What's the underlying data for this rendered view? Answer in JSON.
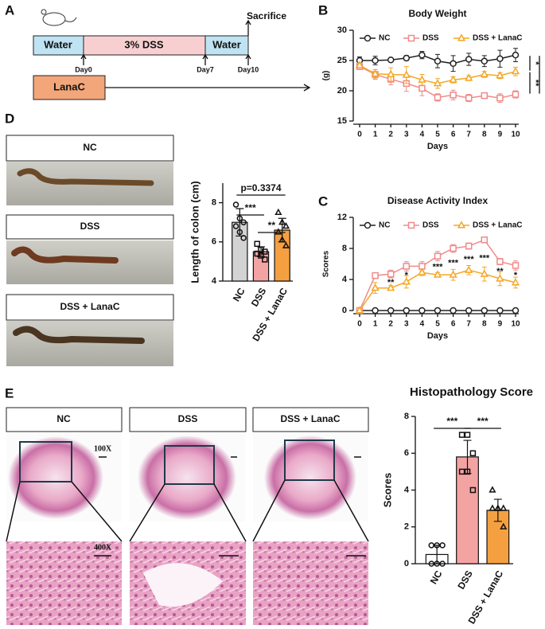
{
  "panel_labels": [
    "A",
    "B",
    "C",
    "D",
    "E"
  ],
  "timeline": {
    "phases": [
      "Water",
      "3% DSS",
      "Water"
    ],
    "end_label": "Sacrifice",
    "days": [
      "Day0",
      "Day7",
      "Day10"
    ],
    "treatment": "LanaC"
  },
  "colon_photos": {
    "labels": [
      "NC",
      "DSS",
      "DSS + LanaC"
    ]
  },
  "histology": {
    "labels": [
      "NC",
      "DSS",
      "DSS + LanaC"
    ],
    "magnifications": [
      "100X",
      "400X"
    ]
  },
  "chart_data": [
    {
      "type": "line",
      "title": "Body Weight",
      "x_label": "Days",
      "y_label": "(g)",
      "x": [
        0,
        1,
        2,
        3,
        4,
        5,
        6,
        7,
        8,
        9,
        10
      ],
      "xlim": [
        0,
        10
      ],
      "xticks": [
        0,
        1,
        2,
        3,
        4,
        5,
        6,
        7,
        8,
        9,
        10
      ],
      "ylim": [
        15,
        30
      ],
      "yticks": [
        15,
        20,
        25,
        30
      ],
      "series": [
        {
          "name": "NC",
          "color": "#222222",
          "marker": "circle",
          "values": [
            25,
            25,
            25.1,
            25.4,
            25.9,
            24.9,
            24.5,
            25.2,
            24.9,
            25.3,
            25.9
          ],
          "errors": [
            0.6,
            0.7,
            0.3,
            0.4,
            0.6,
            1.1,
            1.3,
            1,
            0.9,
            1.4,
            1.1
          ]
        },
        {
          "name": "DSS",
          "color": "#f08a8a",
          "marker": "square",
          "values": [
            24,
            22.7,
            21.9,
            21.2,
            20.4,
            18.9,
            19.3,
            18.8,
            19.2,
            18.8,
            19.4
          ],
          "errors": [
            0.5,
            0.8,
            0.9,
            1.3,
            1.2,
            0.6,
            0.8,
            0.6,
            0.4,
            0.7,
            0.6
          ]
        },
        {
          "name": "DSS + LanaC",
          "color": "#f5a623",
          "marker": "triangle",
          "values": [
            24.2,
            22.8,
            22.7,
            22.6,
            21.8,
            21.2,
            21.8,
            22.1,
            22.7,
            22.5,
            23.2
          ],
          "errors": [
            0.4,
            0.7,
            1.1,
            1.4,
            0.9,
            0.8,
            0.5,
            0.4,
            0.5,
            0.5,
            0.7
          ]
        }
      ],
      "annotations": [
        "*",
        "**",
        "***"
      ]
    },
    {
      "type": "line",
      "title": "Disease Activity Index",
      "x_label": "Days",
      "y_label": "Scores",
      "x": [
        0,
        1,
        2,
        3,
        4,
        5,
        6,
        7,
        8,
        9,
        10
      ],
      "xlim": [
        0,
        10
      ],
      "xticks": [
        0,
        1,
        2,
        3,
        4,
        5,
        6,
        7,
        8,
        9,
        10
      ],
      "ylim": [
        0,
        12
      ],
      "yticks": [
        0,
        4,
        8,
        12
      ],
      "series": [
        {
          "name": "NC",
          "color": "#222222",
          "marker": "circle",
          "values": [
            0,
            0,
            0,
            0,
            0,
            0,
            0,
            0,
            0,
            0,
            0
          ],
          "errors": [
            0,
            0,
            0,
            0,
            0,
            0,
            0,
            0,
            0,
            0,
            0
          ]
        },
        {
          "name": "DSS",
          "color": "#f08a8a",
          "marker": "square",
          "values": [
            0,
            4.5,
            4.7,
            5.7,
            5.7,
            7,
            8,
            8.3,
            9.1,
            6.3,
            5.8
          ],
          "errors": [
            0,
            0.3,
            0.5,
            0.6,
            0.6,
            0.6,
            0.5,
            0.4,
            0.3,
            0.4,
            0.6
          ]
        },
        {
          "name": "DSS + LanaC",
          "color": "#f5a623",
          "marker": "triangle",
          "values": [
            0,
            2.9,
            2.9,
            3.7,
            4.9,
            4.6,
            4.6,
            5.2,
            4.7,
            4.1,
            3.6
          ],
          "errors": [
            0,
            0.7,
            0.3,
            0.8,
            0.4,
            0.3,
            0.7,
            0.6,
            0.9,
            0.9,
            0.7
          ]
        }
      ],
      "annotations": [
        {
          "x": 2,
          "text": "**"
        },
        {
          "x": 3,
          "text": "*"
        },
        {
          "x": 5,
          "text": "***"
        },
        {
          "x": 6,
          "text": "***"
        },
        {
          "x": 7,
          "text": "***"
        },
        {
          "x": 8,
          "text": "***"
        },
        {
          "x": 9,
          "text": "**"
        },
        {
          "x": 10,
          "text": "*"
        }
      ]
    },
    {
      "type": "bar",
      "y_label": "Length of colon (cm)",
      "categories": [
        "NC",
        "DSS",
        "DSS + LanaC"
      ],
      "colors": [
        "#d3d3d3",
        "#f4a3a3",
        "#f5a040"
      ],
      "markers": [
        "circle",
        "square",
        "triangle"
      ],
      "values": [
        7.0,
        5.5,
        6.6
      ],
      "errors": [
        0.7,
        0.25,
        0.6
      ],
      "points": [
        [
          7.9,
          7.2,
          7.0,
          6.8,
          6.5,
          6.2
        ],
        [
          5.9,
          5.6,
          5.5,
          5.4,
          5.3,
          5.1
        ],
        [
          7.5,
          7.0,
          6.8,
          6.5,
          6.1,
          5.8
        ]
      ],
      "ylim": [
        4,
        9
      ],
      "yticks": [
        4,
        6,
        8
      ],
      "annotations": [
        "p=0.3374",
        "***",
        "**"
      ]
    },
    {
      "type": "bar",
      "title": "Histopathology Score",
      "y_label": "Scores",
      "categories": [
        "NC",
        "DSS",
        "DSS + LanaC"
      ],
      "colors": [
        "#ffffff",
        "#f4a3a3",
        "#f5a040"
      ],
      "markers": [
        "circle",
        "square",
        "triangle"
      ],
      "values": [
        0.5,
        5.8,
        2.9
      ],
      "errors": [
        0.5,
        0.9,
        0.6
      ],
      "points": [
        [
          1,
          1,
          1,
          0,
          0,
          0
        ],
        [
          7,
          7,
          6,
          5,
          5,
          4
        ],
        [
          4,
          3,
          3,
          3,
          3,
          2
        ]
      ],
      "ylim": [
        0,
        8
      ],
      "yticks": [
        0,
        2,
        4,
        6,
        8
      ],
      "annotations": [
        "***",
        "***"
      ]
    }
  ]
}
